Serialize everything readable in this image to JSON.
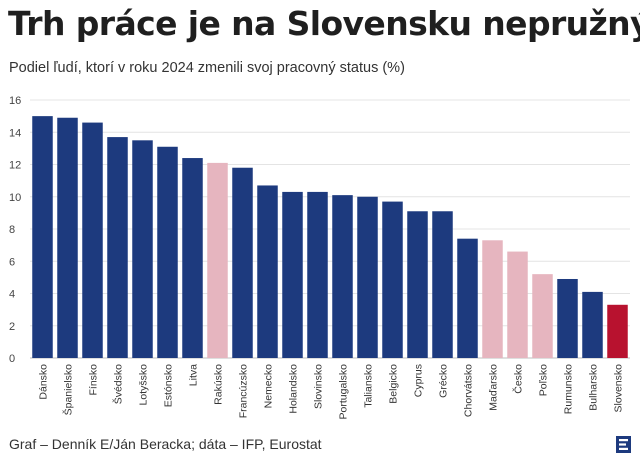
{
  "title": "Trh práce je na Slovensku nepružný",
  "subtitle": "Podiel ľudí, ktorí v roku 2024 zmenili svoj pracovný status (%)",
  "footer": "Graf – Denník E/Ján Beracka; dáta – IFP, Eurostat",
  "colors": {
    "default": "#1d3a7e",
    "highlight_neighbor": "#e6b5bf",
    "highlight_slovakia": "#b8122f",
    "logo": "#1d3a7e"
  },
  "chart_data": {
    "type": "bar",
    "categories": [
      "Dánsko",
      "Španielsko",
      "Fínsko",
      "Švédsko",
      "Lotyšsko",
      "Estónsko",
      "Litva",
      "Rakúsko",
      "Francúzsko",
      "Nemecko",
      "Holandsko",
      "Slovinsko",
      "Portugalsko",
      "Taliansko",
      "Belgicko",
      "Cyprus",
      "Grécko",
      "Chorvátsko",
      "Maďarsko",
      "Česko",
      "Poľsko",
      "Rumunsko",
      "Bulharsko",
      "Slovensko"
    ],
    "values": [
      15.0,
      14.9,
      14.6,
      13.7,
      13.5,
      13.1,
      12.4,
      12.1,
      11.8,
      10.7,
      10.3,
      10.3,
      10.1,
      10.0,
      9.7,
      9.1,
      9.1,
      7.4,
      7.3,
      6.6,
      5.2,
      4.9,
      4.1,
      3.3
    ],
    "bar_colors": [
      "default",
      "default",
      "default",
      "default",
      "default",
      "default",
      "default",
      "highlight_neighbor",
      "default",
      "default",
      "default",
      "default",
      "default",
      "default",
      "default",
      "default",
      "default",
      "default",
      "highlight_neighbor",
      "highlight_neighbor",
      "highlight_neighbor",
      "default",
      "default",
      "highlight_slovakia"
    ],
    "yticks": [
      "0",
      "2",
      "4",
      "6",
      "8",
      "10",
      "12",
      "14",
      "16"
    ],
    "ylim": [
      0,
      16
    ],
    "grid": true,
    "legend": "none"
  }
}
